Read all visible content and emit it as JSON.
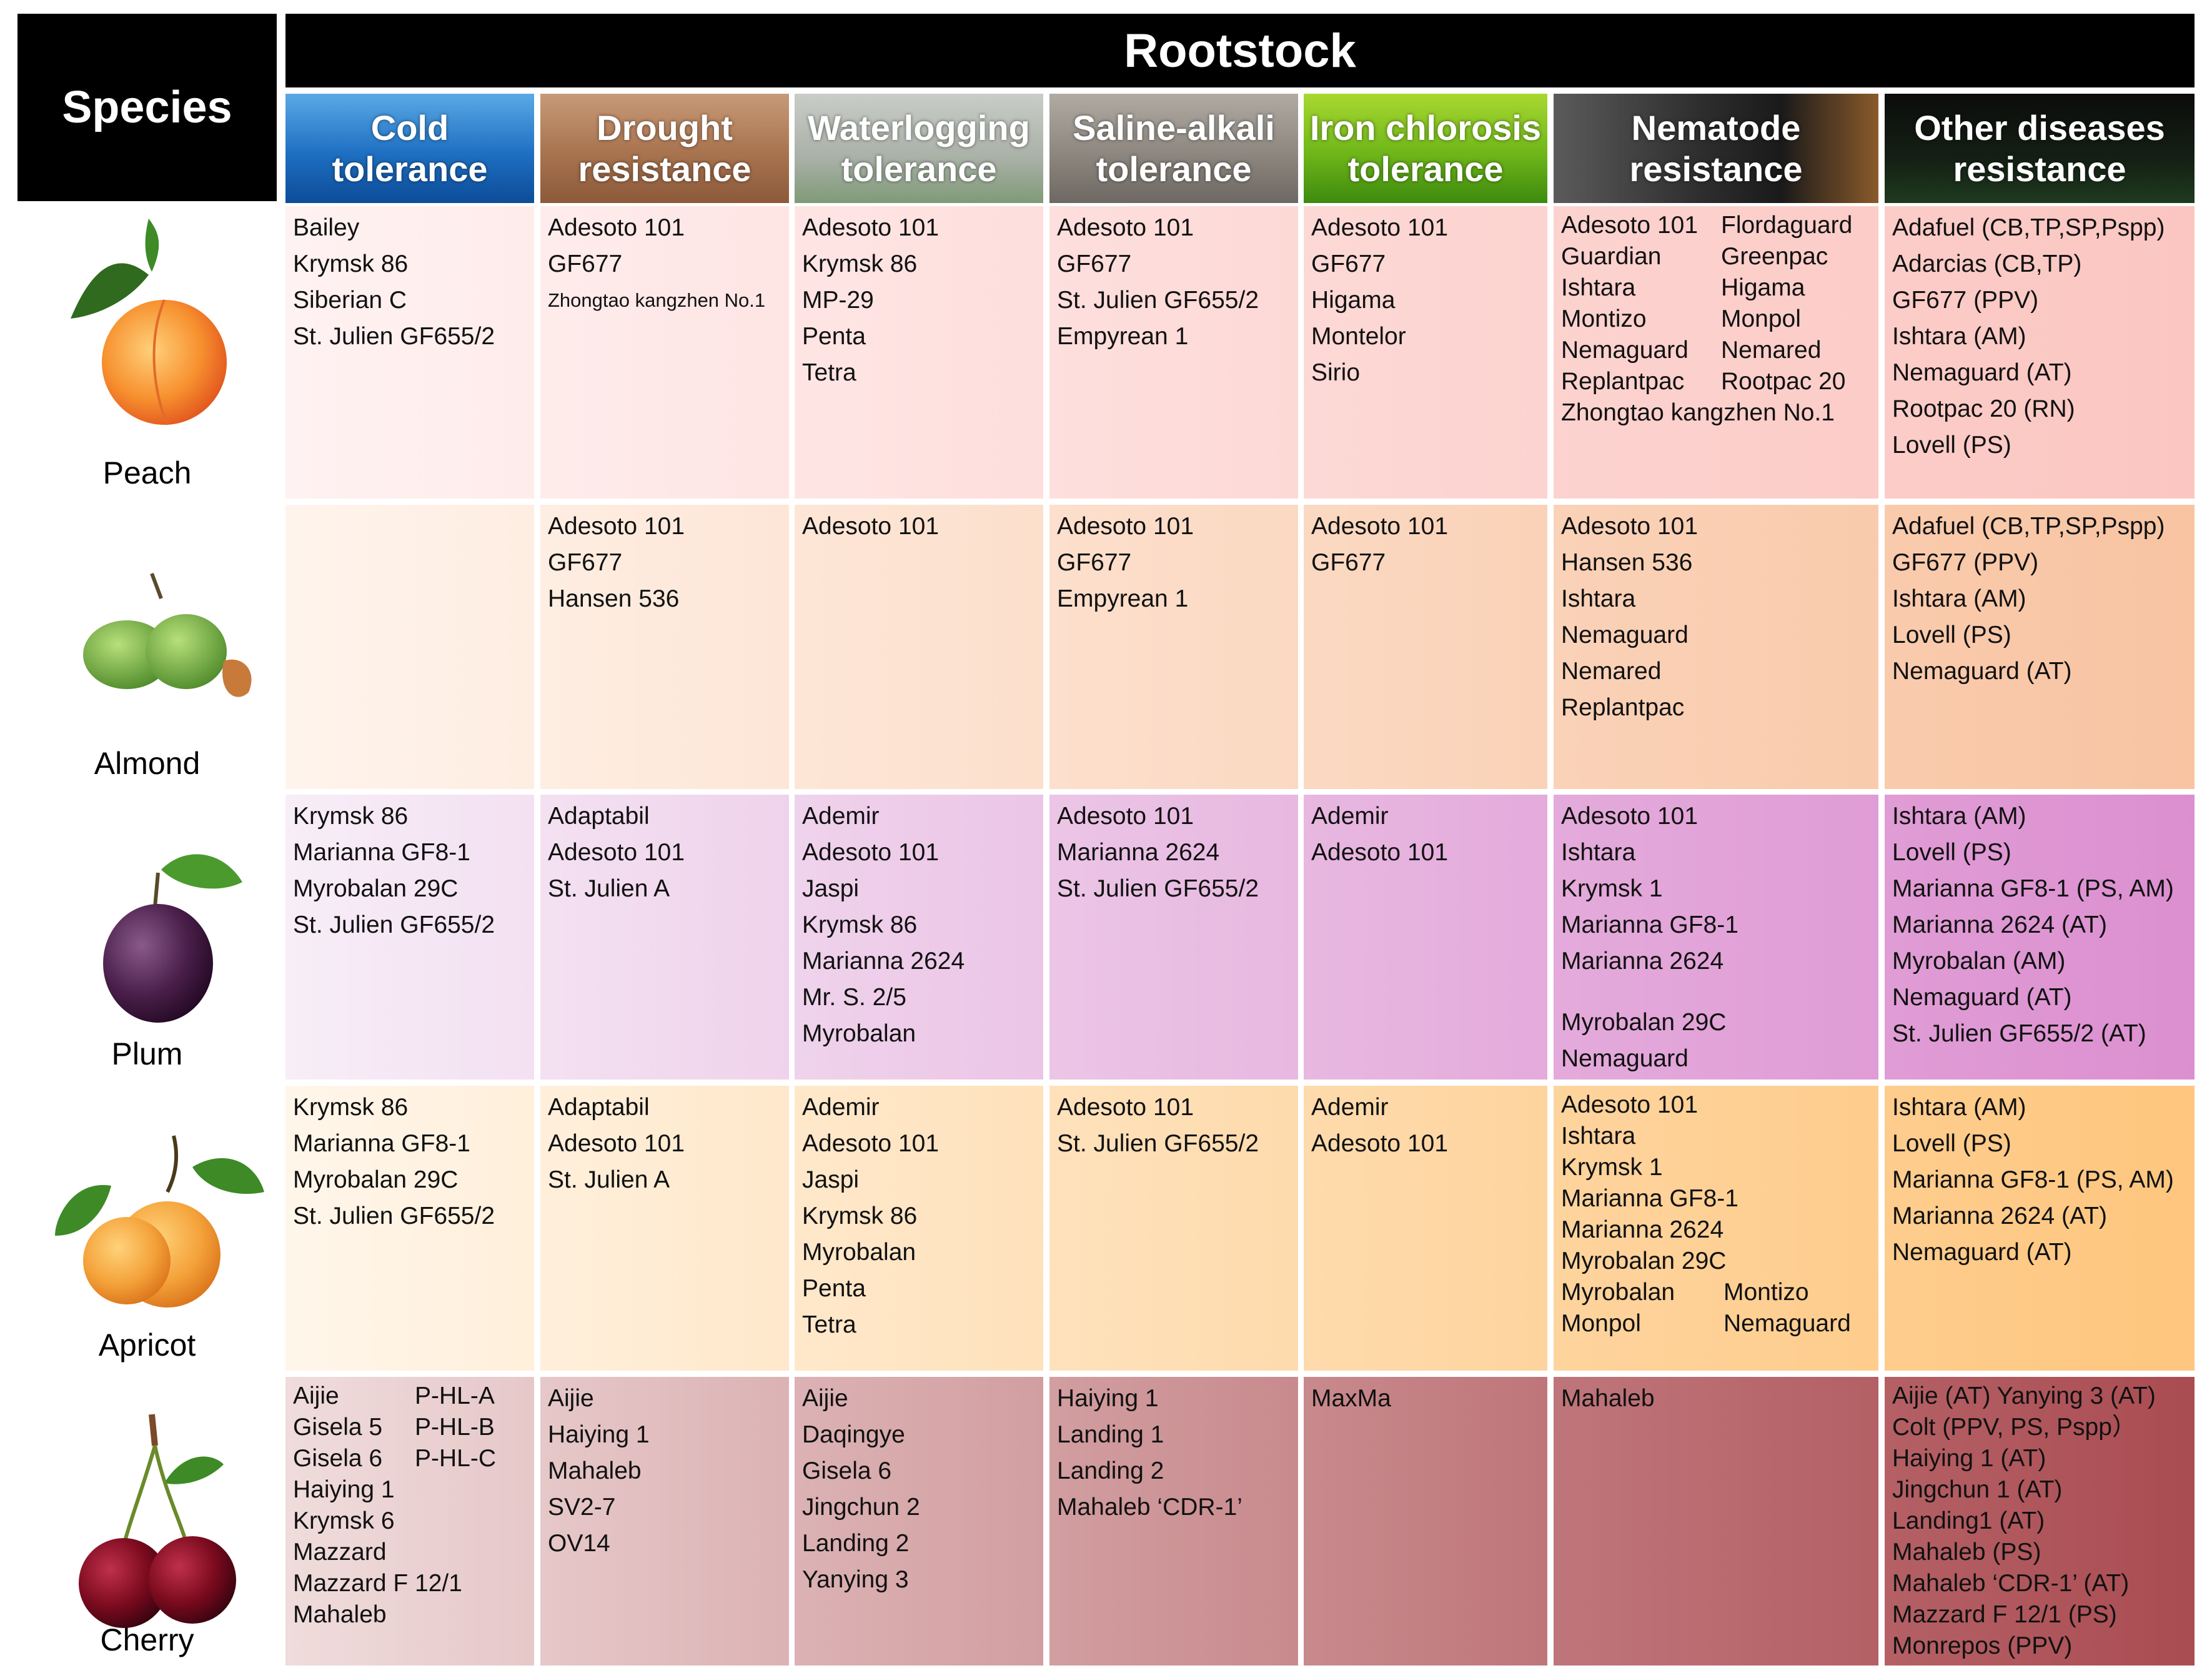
{
  "header": {
    "species": "Species",
    "rootstock": "Rootstock"
  },
  "traits": [
    {
      "label": "Cold\ntolerance"
    },
    {
      "label": "Drought\nresistance"
    },
    {
      "label": "Waterlogging\ntolerance"
    },
    {
      "label": "Saline-alkali\ntolerance"
    },
    {
      "label": "Iron chlorosis\ntolerance"
    },
    {
      "label": "Nematode\nresistance"
    },
    {
      "label": "Other diseases\nresistance"
    }
  ],
  "rows": [
    {
      "species": "Peach",
      "cells": [
        [
          "Bailey",
          "Krymsk 86",
          "Siberian C",
          "St. Julien GF655/2"
        ],
        [
          "Adesoto 101",
          "GF677",
          "Zhongtao kangzhen No.1"
        ],
        [
          "Adesoto 101",
          "Krymsk 86",
          "MP-29",
          "Penta",
          "Tetra"
        ],
        [
          "Adesoto 101",
          "GF677",
          "St. Julien GF655/2",
          "Empyrean 1"
        ],
        [
          "Adesoto 101",
          "GF677",
          "Higama",
          "Montelor",
          "Sirio"
        ],
        [
          "Adesoto 101",
          "Flordaguard",
          "Guardian",
          "Greenpac",
          "Ishtara",
          "Higama",
          "Montizo",
          "Monpol",
          "Nemaguard",
          "Nemared",
          "Replantpac",
          "Rootpac 20",
          "Zhongtao kangzhen No.1"
        ],
        [
          "Adafuel (CB,TP,SP,Pspp)",
          "Adarcias (CB,TP)",
          "GF677 (PPV)",
          "Ishtara (AM)",
          "Nemaguard (AT)",
          "Rootpac 20 (RN)",
          "Lovell (PS)"
        ]
      ]
    },
    {
      "species": "Almond",
      "cells": [
        [],
        [
          "Adesoto 101",
          "GF677",
          "Hansen 536"
        ],
        [
          "Adesoto 101"
        ],
        [
          "Adesoto 101",
          "GF677",
          "Empyrean 1"
        ],
        [
          "Adesoto 101",
          "GF677"
        ],
        [
          "Adesoto 101",
          "Hansen 536",
          "Ishtara",
          "Nemaguard",
          "Nemared",
          "Replantpac"
        ],
        [
          "Adafuel (CB,TP,SP,Pspp)",
          "GF677 (PPV)",
          "Ishtara (AM)",
          "Lovell (PS)",
          "Nemaguard (AT)"
        ]
      ]
    },
    {
      "species": "Plum",
      "cells": [
        [
          "Krymsk 86",
          "Marianna GF8-1",
          "Myrobalan 29C",
          "St. Julien GF655/2"
        ],
        [
          "Adaptabil",
          "Adesoto 101",
          "St. Julien A"
        ],
        [
          "Ademir",
          "Adesoto 101",
          "Jaspi",
          "Krymsk 86",
          "Marianna 2624",
          "Mr. S. 2/5",
          "Myrobalan"
        ],
        [
          "Adesoto 101",
          "Marianna 2624",
          "St. Julien GF655/2"
        ],
        [
          "Ademir",
          "Adesoto 101"
        ],
        [
          "Adesoto 101",
          "Ishtara",
          "Krymsk 1",
          "Marianna GF8-1",
          "Marianna 2624",
          "",
          "Myrobalan 29C",
          "Nemaguard"
        ],
        [
          "Ishtara (AM)",
          "Lovell (PS)",
          "Marianna GF8-1 (PS, AM)",
          "Marianna 2624 (AT)",
          "Myrobalan (AM)",
          "Nemaguard (AT)",
          "St. Julien GF655/2 (AT)"
        ]
      ]
    },
    {
      "species": "Apricot",
      "cells": [
        [
          "Krymsk 86",
          "Marianna GF8-1",
          "Myrobalan 29C",
          "St. Julien GF655/2"
        ],
        [
          "Adaptabil",
          "Adesoto 101",
          "St. Julien A"
        ],
        [
          "Ademir",
          "Adesoto 101",
          "Jaspi",
          "Krymsk 86",
          "Myrobalan",
          "Penta",
          "Tetra"
        ],
        [
          "Adesoto 101",
          "St. Julien GF655/2"
        ],
        [
          "Ademir",
          "Adesoto 101"
        ],
        [
          "Adesoto 101",
          "Ishtara",
          "Krymsk 1",
          "Marianna GF8-1",
          "Marianna 2624",
          "Myrobalan 29C",
          "Myrobalan",
          "Montizo",
          "Monpol",
          "Nemaguard"
        ],
        [
          "Ishtara (AM)",
          "Lovell (PS)",
          "Marianna GF8-1 (PS, AM)",
          "Marianna 2624 (AT)",
          "Nemaguard (AT)"
        ]
      ]
    },
    {
      "species": "Cherry",
      "cells": [
        [
          "Aijie",
          "P-HL-A",
          "Gisela 5",
          "P-HL-B",
          "Gisela 6",
          "P-HL-C",
          "Haiying 1",
          "Krymsk 6",
          "Mazzard",
          "Mazzard F 12/1",
          "Mahaleb"
        ],
        [
          "Aijie",
          "Haiying 1",
          "Mahaleb",
          "SV2-7",
          "OV14"
        ],
        [
          "Aijie",
          "Daqingye",
          "Gisela 6",
          "Jingchun 2",
          "Landing 2",
          "Yanying 3"
        ],
        [
          "Haiying 1",
          "Landing 1",
          "Landing 2",
          "Mahaleb ‘CDR-1’"
        ],
        [
          "MaxMa"
        ],
        [
          "Mahaleb"
        ],
        [
          "Aijie (AT)   Yanying 3 (AT)",
          "Colt (PPV, PS, Pspp）",
          "Haiying 1 (AT)",
          "Jingchun 1 (AT)",
          "Landing1 (AT)",
          "Mahaleb (PS)",
          "Mahaleb ‘CDR-1’ (AT)",
          "Mazzard F 12/1 (PS)",
          "Monrepos (PPV)"
        ]
      ]
    }
  ]
}
